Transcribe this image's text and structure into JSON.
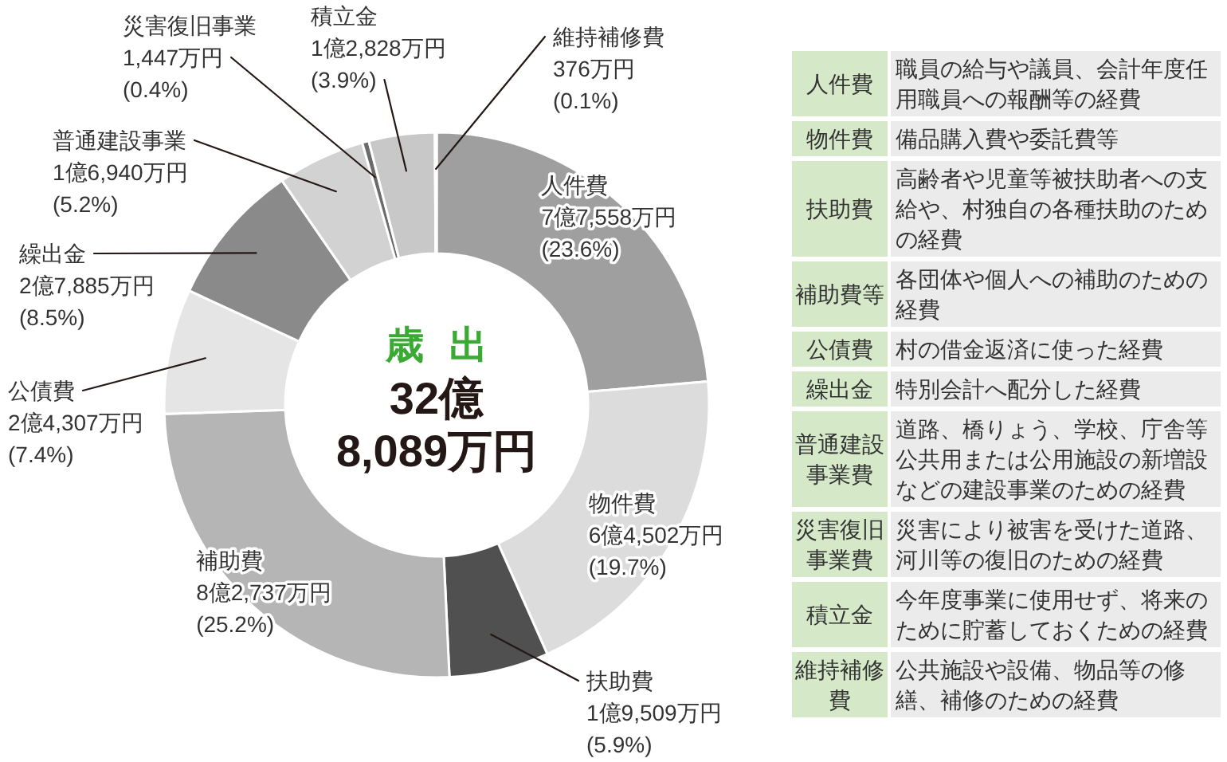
{
  "chart_data": [
    {
      "type": "donut",
      "title": "歳出",
      "subtitle": "32億\n8,089万円",
      "categories": [
        "人件費",
        "物件費",
        "扶助費",
        "補助費",
        "公債費",
        "繰出金",
        "普通建設事業",
        "災害復旧事業",
        "積立金",
        "維持補修費"
      ],
      "values": [
        23.6,
        19.7,
        5.9,
        25.2,
        7.4,
        8.5,
        5.2,
        0.4,
        3.9,
        0.1
      ],
      "colors": [
        "#9f9f9f",
        "#dcdcdc",
        "#505050",
        "#b5b5b5",
        "#e5e5e5",
        "#8a8a8a",
        "#d2d2d2",
        "#6b6b6b",
        "#c8c8c8",
        "#e0e0e0"
      ],
      "value_labels": [
        "7億7,558万円\n(23.6%)",
        "6億4,502万円\n(19.7%)",
        "1億9,509万円\n(5.9%)",
        "8億2,737万円\n(25.2%)",
        "2億4,307万円\n(7.4%)",
        "2億7,885万円\n(8.5%)",
        "1億6,940万円\n(5.2%)",
        "1,447万円\n(0.4%)",
        "1億2,828万円\n(3.9%)",
        "376万円\n(0.1%)"
      ]
    },
    {
      "type": "other",
      "categories": [
        "人件費",
        "物件費",
        "扶助費",
        "補助費等",
        "公債費",
        "繰出金",
        "普通建設事業費",
        "災害復旧事業費",
        "積立金",
        "維持補修費"
      ],
      "annotations": [
        "職員の給与や議員、会計年度任用職員への報酬等の経費",
        "備品購入費や委託費等",
        "高齢者や児童等被扶助者への支給や、村独自の各種扶助のための経費",
        "各団体や個人への補助のための経費",
        "村の借金返済に使った経費",
        "特別会計へ配分した経費",
        "道路、橋りょう、学校、庁舎等公共用または公用施設の新増設などの建設事業のための経費",
        "災害により被害を受けた道路、河川等の復旧のための経費",
        "今年度事業に使用せず、将来のために貯蓄しておくための経費",
        "公共施設や設備、物品等の修繕、補修のための経費"
      ]
    }
  ]
}
